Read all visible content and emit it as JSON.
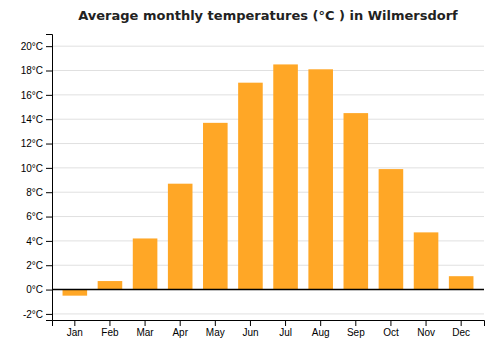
{
  "chart_data": {
    "type": "bar",
    "title": "Average monthly temperatures (°C ) in Wilmersdorf",
    "categories": [
      "Jan",
      "Feb",
      "Mar",
      "Apr",
      "May",
      "Jun",
      "Jul",
      "Aug",
      "Sep",
      "Oct",
      "Nov",
      "Dec"
    ],
    "values": [
      -0.5,
      0.7,
      4.2,
      8.7,
      13.7,
      17.0,
      18.5,
      18.1,
      14.5,
      9.9,
      4.7,
      1.1
    ],
    "color": "#FFA726",
    "ylim": [
      -2.5,
      21
    ],
    "yticks": [
      {
        "value": -2,
        "label": "-2°C"
      },
      {
        "value": 0,
        "label": "0°C"
      },
      {
        "value": 2,
        "label": "2°C"
      },
      {
        "value": 4,
        "label": "4°C"
      },
      {
        "value": 6,
        "label": "6°C"
      },
      {
        "value": 8,
        "label": "8°C"
      },
      {
        "value": 10,
        "label": "10°C"
      },
      {
        "value": 12,
        "label": "12°C"
      },
      {
        "value": 14,
        "label": "14°C"
      },
      {
        "value": 16,
        "label": "16°C"
      },
      {
        "value": 18,
        "label": "18°C"
      },
      {
        "value": 20,
        "label": "20°C"
      }
    ],
    "grid": true
  }
}
